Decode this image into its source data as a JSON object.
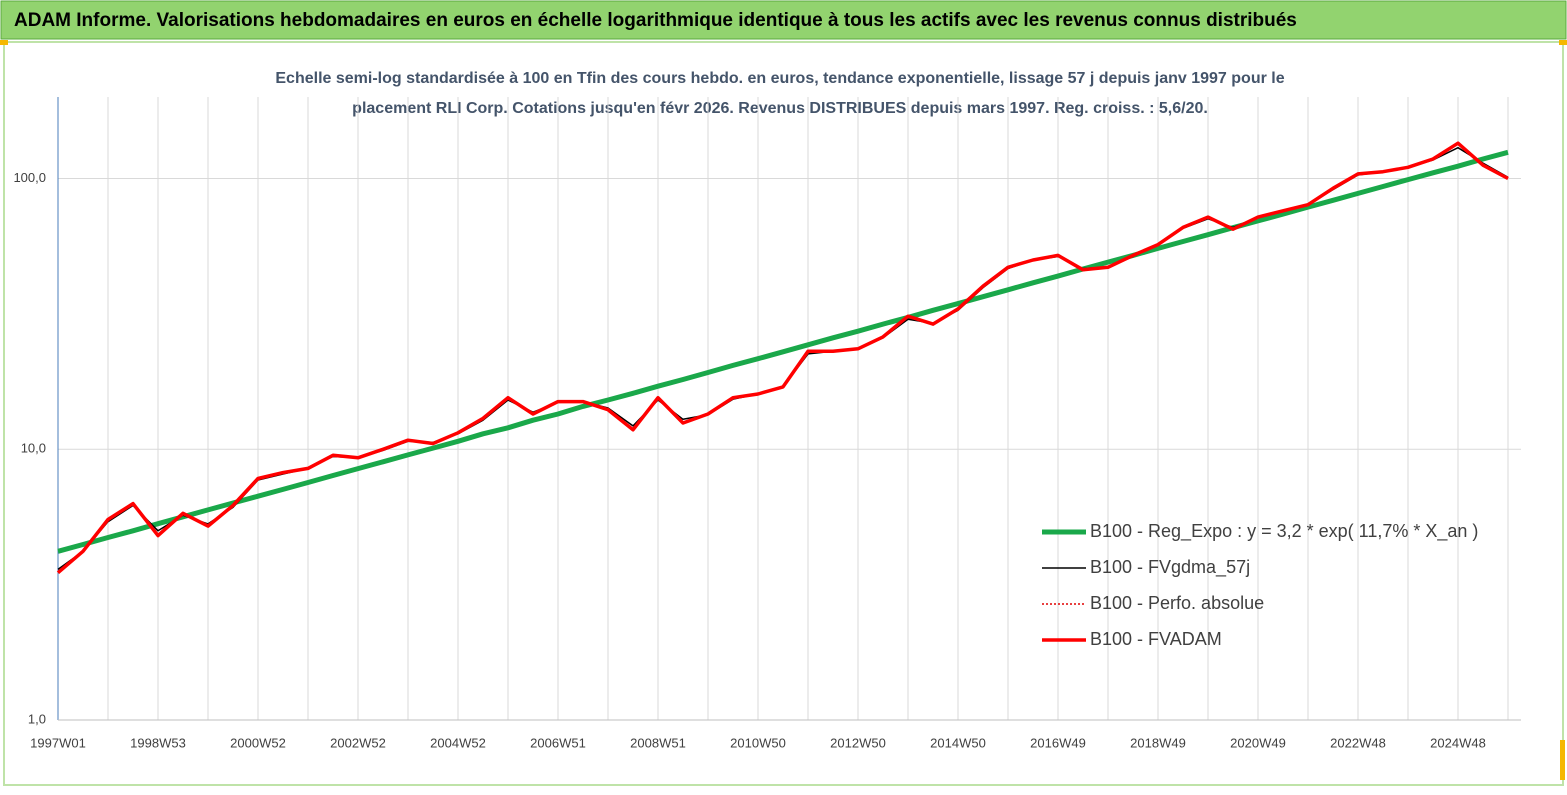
{
  "chart_data": {
    "type": "line",
    "title": "ADAM Informe. Valorisations hebdomadaires en euros en échelle logarithmique identique à tous les actifs avec les revenus connus distribués",
    "subtitle": [
      "Echelle semi-log standardisée à 100 en Tfin des cours hebdo. en euros, tendance exponentielle, lissage 57 j depuis janv 1997 pour le",
      "placement RLI Corp. Cotations jusqu'en févr 2026. Revenus DISTRIBUES depuis mars 1997.  Reg. croiss. : 5,6/20."
    ],
    "categories": [
      "1997W01",
      null,
      null,
      null,
      "1998W53",
      null,
      null,
      null,
      "2000W52",
      null,
      null,
      null,
      "2002W52",
      null,
      null,
      null,
      "2004W52",
      null,
      null,
      null,
      "2006W51",
      null,
      null,
      null,
      "2008W51",
      null,
      null,
      null,
      "2010W50",
      null,
      null,
      null,
      "2012W50",
      null,
      null,
      null,
      "2014W50",
      null,
      null,
      null,
      "2016W49",
      null,
      null,
      null,
      "2018W49",
      null,
      null,
      null,
      "2020W49",
      null,
      null,
      null,
      "2022W48",
      null,
      null,
      null,
      "2024W48",
      null,
      null
    ],
    "log_scale": true,
    "ylim": [
      1,
      200
    ],
    "yticks": [
      {
        "value": 1,
        "label": "1,0"
      },
      {
        "value": 10,
        "label": "10,0"
      },
      {
        "value": 100,
        "label": "100,0"
      }
    ],
    "grid": true,
    "legend_position": "right",
    "series": [
      {
        "name": "B100 - Reg_Expo : y = 3,2 * exp( 11,7% *  X_an )",
        "color": "#1aa84a",
        "width": 5,
        "line_style": "solid",
        "values": [
          4.2,
          4.45,
          4.72,
          5.0,
          5.31,
          5.63,
          5.97,
          6.33,
          6.71,
          7.11,
          7.54,
          8.0,
          8.48,
          8.99,
          9.53,
          10.1,
          10.7,
          11.4,
          12.0,
          12.8,
          13.5,
          14.4,
          15.2,
          16.1,
          17.1,
          18.1,
          19.2,
          20.4,
          21.6,
          22.9,
          24.3,
          25.8,
          27.3,
          29.0,
          30.7,
          32.6,
          34.5,
          36.6,
          38.8,
          41.2,
          43.6,
          46.3,
          49.1,
          52.0,
          55.2,
          58.5,
          62.0,
          65.8,
          69.7,
          73.9,
          78.4,
          83.1,
          88.1,
          93.4,
          99.1,
          105,
          111,
          118,
          125
        ]
      },
      {
        "name": "B100 - FVgdma_57j",
        "color": "#000000",
        "width": 1.5,
        "line_style": "solid",
        "values": [
          3.6,
          4.2,
          5.4,
          6.2,
          5.0,
          5.7,
          5.3,
          6.1,
          7.7,
          8.1,
          8.5,
          9.4,
          9.3,
          9.9,
          10.7,
          10.6,
          11.4,
          12.8,
          15.2,
          13.7,
          14.9,
          15.0,
          14.2,
          12.2,
          15.2,
          12.9,
          13.4,
          15.3,
          16.0,
          17.0,
          22.5,
          23.0,
          23.4,
          25.8,
          30.2,
          29.2,
          32.6,
          39.5,
          46.5,
          50.0,
          51.5,
          46.5,
          47.0,
          51.5,
          57.0,
          65.5,
          71.0,
          66.0,
          71.5,
          76.0,
          80.0,
          91.0,
          103,
          106,
          110,
          117,
          130,
          114,
          101
        ]
      },
      {
        "name": "B100 - Perfo. absolue",
        "color": "#e00000",
        "width": 1.5,
        "line_style": "dotted",
        "values": [
          3.5,
          4.2,
          5.5,
          6.3,
          4.8,
          5.8,
          5.2,
          6.2,
          7.8,
          8.2,
          8.5,
          9.5,
          9.3,
          10.0,
          10.8,
          10.5,
          11.5,
          13.0,
          15.5,
          13.5,
          15.0,
          15.0,
          14.0,
          11.8,
          15.5,
          12.5,
          13.5,
          15.5,
          16.0,
          17.0,
          23.0,
          23.0,
          23.5,
          26.0,
          31.0,
          29.0,
          33.0,
          40.0,
          47.0,
          50.0,
          52.0,
          46.0,
          47.0,
          52.0,
          57.0,
          66.0,
          72.0,
          65.0,
          72.0,
          76.0,
          80.0,
          92.0,
          104,
          106,
          110,
          118,
          135,
          112,
          100
        ]
      },
      {
        "name": "B100 - FVADAM",
        "color": "#ff0000",
        "width": 3.5,
        "line_style": "solid",
        "values": [
          3.5,
          4.2,
          5.5,
          6.3,
          4.8,
          5.8,
          5.2,
          6.2,
          7.8,
          8.2,
          8.5,
          9.5,
          9.3,
          10.0,
          10.8,
          10.5,
          11.5,
          13.0,
          15.5,
          13.5,
          15.0,
          15.0,
          14.0,
          11.8,
          15.5,
          12.5,
          13.5,
          15.5,
          16.0,
          17.0,
          23.0,
          23.0,
          23.5,
          26.0,
          31.0,
          29.0,
          33.0,
          40.0,
          47.0,
          50.0,
          52.0,
          46.0,
          47.0,
          52.0,
          57.0,
          66.0,
          72.0,
          65.0,
          72.0,
          76.0,
          80.0,
          92.0,
          104,
          106,
          110,
          118,
          135,
          112,
          100
        ]
      }
    ]
  }
}
